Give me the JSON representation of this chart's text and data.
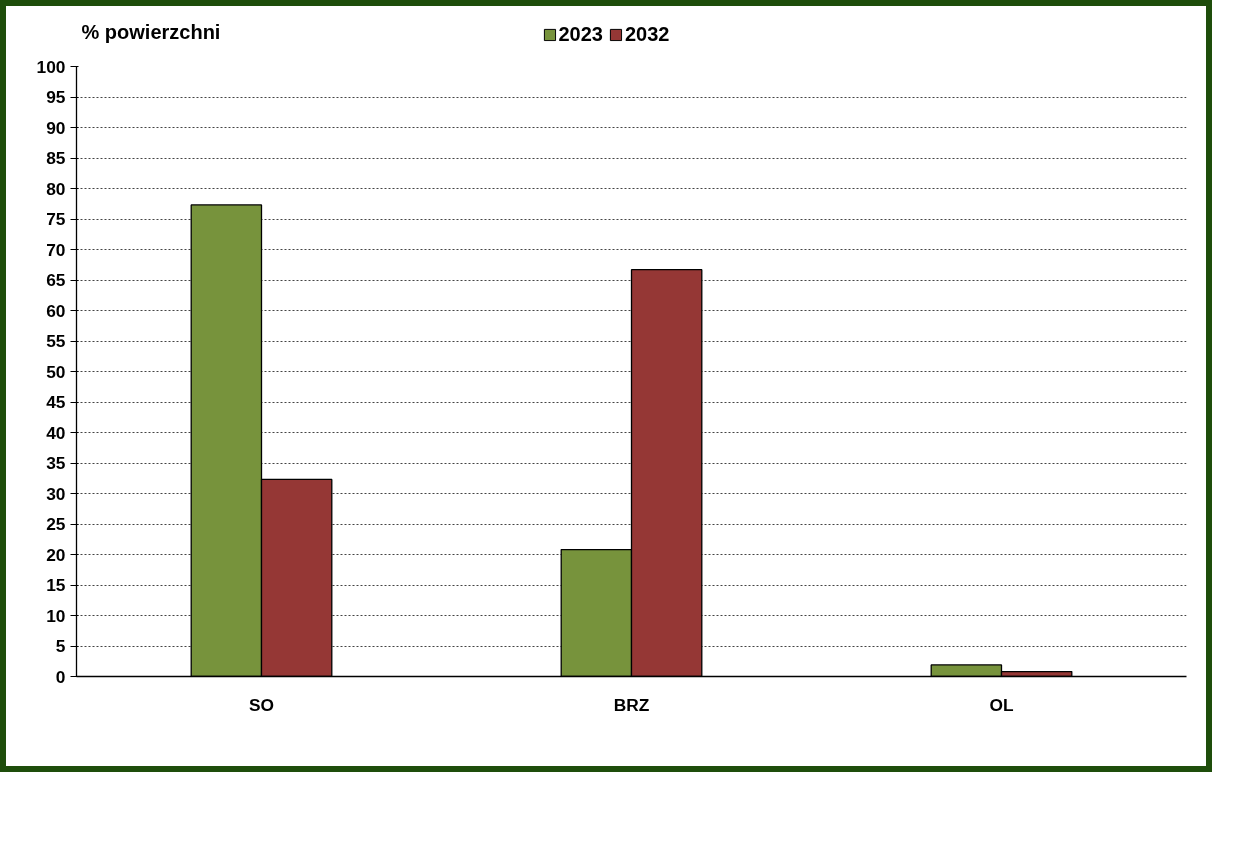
{
  "chart_data": {
    "type": "bar",
    "title": "% powierzchni",
    "categories": [
      "SO",
      "BRZ",
      "OL"
    ],
    "series": [
      {
        "name": "2023",
        "color": "#77933c",
        "values": [
          77.3,
          20.8,
          1.9
        ]
      },
      {
        "name": "2032",
        "color": "#953735",
        "values": [
          32.3,
          66.7,
          0.8
        ]
      }
    ],
    "ylim": [
      0,
      100
    ],
    "yticks": [
      0,
      5,
      10,
      15,
      20,
      25,
      30,
      35,
      40,
      45,
      50,
      55,
      60,
      65,
      70,
      75,
      80,
      85,
      90,
      95,
      100
    ],
    "grid": "y",
    "legend": "top"
  }
}
